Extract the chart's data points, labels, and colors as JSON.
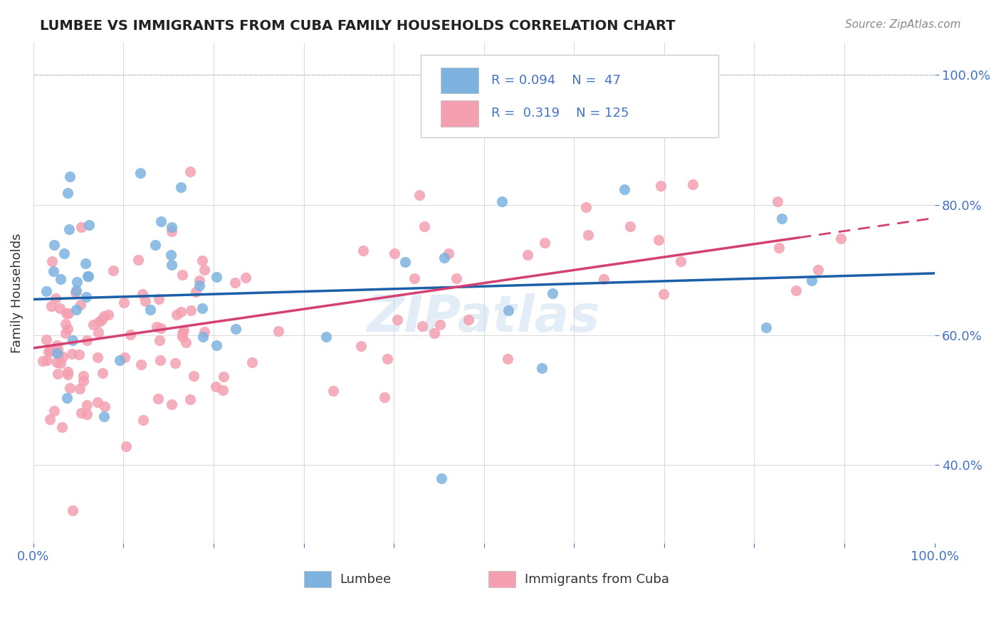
{
  "title": "LUMBEE VS IMMIGRANTS FROM CUBA FAMILY HOUSEHOLDS CORRELATION CHART",
  "source": "Source: ZipAtlas.com",
  "ylabel": "Family Households",
  "xlim": [
    0.0,
    1.0
  ],
  "ylim": [
    0.28,
    1.05
  ],
  "yticks": [
    0.4,
    0.6,
    0.8,
    1.0
  ],
  "ytick_labels": [
    "40.0%",
    "60.0%",
    "80.0%",
    "100.0%"
  ],
  "color_lumbee": "#7EB3E0",
  "color_cuba": "#F4A0B0",
  "line_color_lumbee": "#1A5FA8",
  "line_color_cuba": "#D44070",
  "background_color": "#FFFFFF",
  "watermark": "ZIPatlas",
  "tick_color": "#4472C4",
  "grid_color": "#CCCCCC",
  "lumbee_slope": 0.04,
  "lumbee_intercept": 0.655,
  "cuba_slope": 0.2,
  "cuba_intercept": 0.58
}
